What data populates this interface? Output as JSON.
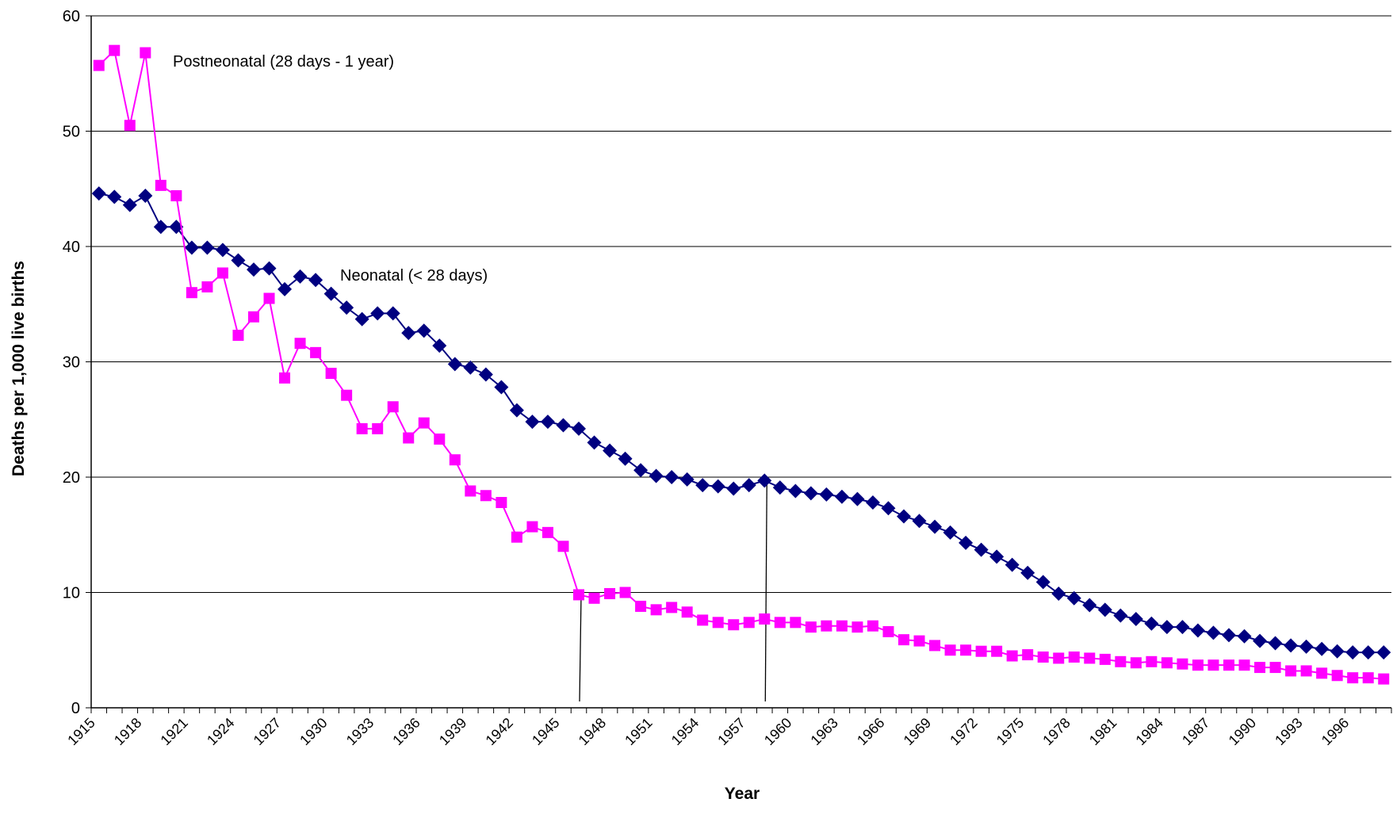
{
  "chart_data": {
    "type": "line",
    "y_label": "Deaths per 1,000 live births",
    "x_label": "Year",
    "annotations": [
      "Postneonatal (28 days - 1 year)",
      "Neonatal (< 28 days)"
    ],
    "categories": [
      "1915",
      null,
      null,
      "1918",
      null,
      null,
      "1921",
      null,
      null,
      "1924",
      null,
      null,
      "1927",
      null,
      null,
      "1930",
      null,
      null,
      "1933",
      null,
      null,
      "1936",
      null,
      null,
      "1939",
      null,
      null,
      "1942",
      null,
      null,
      "1945",
      null,
      null,
      "1948",
      null,
      null,
      "1951",
      null,
      null,
      "1954",
      null,
      null,
      "1957",
      null,
      null,
      "1960",
      null,
      null,
      "1963",
      null,
      null,
      "1966",
      null,
      null,
      "1969",
      null,
      null,
      "1972",
      null,
      null,
      "1975",
      null,
      null,
      "1978",
      null,
      null,
      "1981",
      null,
      null,
      "1984",
      null,
      null,
      "1987",
      null,
      null,
      "1990",
      null,
      null,
      "1993",
      null,
      null,
      "1996",
      null,
      null
    ],
    "series": [
      {
        "color": "#000080",
        "marker": "diamond",
        "values": [
          44.6,
          44.3,
          43.6,
          44.4,
          41.7,
          41.7,
          39.9,
          39.9,
          39.7,
          38.8,
          38.0,
          38.1,
          36.3,
          37.4,
          37.1,
          35.9,
          34.7,
          33.7,
          34.2,
          34.2,
          32.5,
          32.7,
          31.4,
          29.8,
          29.5,
          28.9,
          27.8,
          25.8,
          24.8,
          24.8,
          24.5,
          24.2,
          23.0,
          22.3,
          21.6,
          20.6,
          20.1,
          20.0,
          19.8,
          19.3,
          19.2,
          19.0,
          19.3,
          19.7,
          19.1,
          18.8,
          18.6,
          18.5,
          18.3,
          18.1,
          17.8,
          17.3,
          16.6,
          16.2,
          15.7,
          15.2,
          14.3,
          13.7,
          13.1,
          12.4,
          11.7,
          10.9,
          9.9,
          9.5,
          8.9,
          8.5,
          8.0,
          7.7,
          7.3,
          7.0,
          7.0,
          6.7,
          6.5,
          6.3,
          6.2,
          5.8,
          5.6,
          5.4,
          5.3,
          5.1,
          4.9,
          4.8,
          4.8,
          4.8
        ]
      },
      {
        "color": "#ff00ff",
        "marker": "square",
        "values": [
          55.7,
          57.0,
          50.5,
          56.8,
          45.3,
          44.4,
          36.0,
          36.5,
          37.7,
          32.3,
          33.9,
          35.5,
          28.6,
          31.6,
          30.8,
          29.0,
          27.1,
          24.2,
          24.2,
          26.1,
          23.4,
          24.7,
          23.3,
          21.5,
          18.8,
          18.4,
          17.8,
          14.8,
          15.7,
          15.2,
          14.0,
          9.8,
          9.5,
          9.9,
          10.0,
          8.8,
          8.5,
          8.7,
          8.3,
          7.6,
          7.4,
          7.2,
          7.4,
          7.7,
          7.4,
          7.4,
          7.0,
          7.1,
          7.1,
          7.0,
          7.1,
          6.6,
          5.9,
          5.8,
          5.4,
          5.0,
          5.0,
          4.9,
          4.9,
          4.5,
          4.6,
          4.4,
          4.3,
          4.4,
          4.3,
          4.2,
          4.0,
          3.9,
          4.0,
          3.9,
          3.8,
          3.7,
          3.7,
          3.7,
          3.7,
          3.5,
          3.5,
          3.2,
          3.2,
          3.0,
          2.8,
          2.6,
          2.6,
          2.5
        ]
      }
    ],
    "ylim": [
      0,
      60
    ],
    "yticks": [
      0,
      10,
      20,
      30,
      40,
      50,
      60
    ],
    "grid": true
  }
}
